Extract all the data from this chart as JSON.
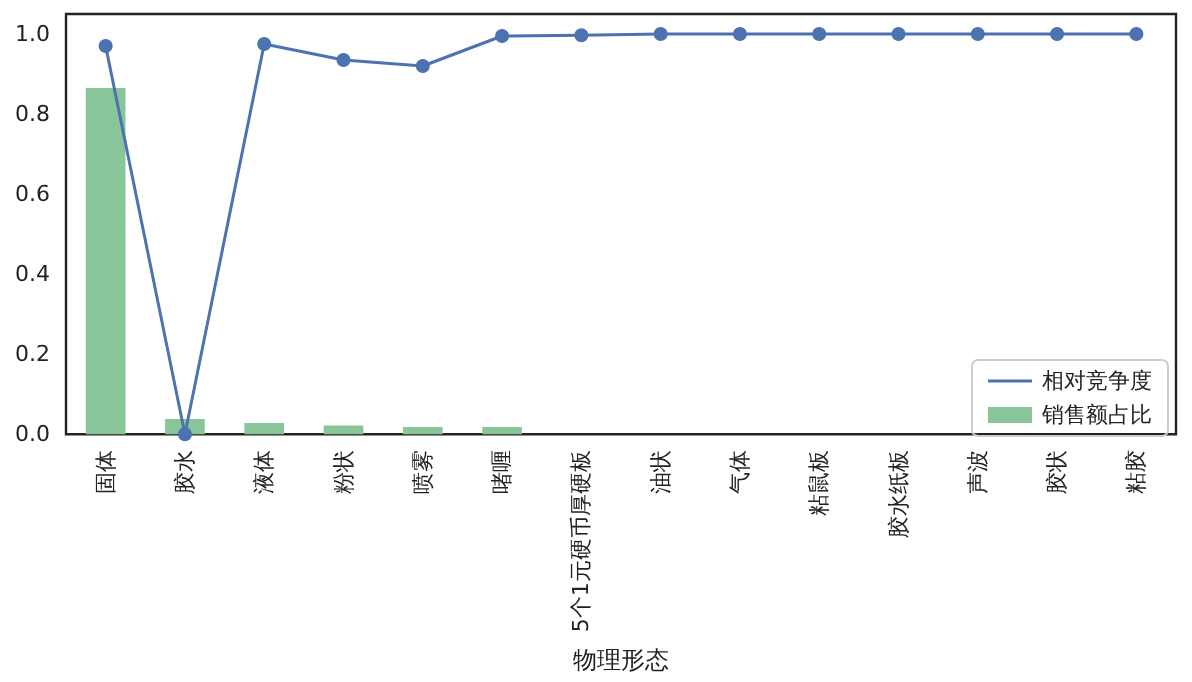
{
  "chart_data": {
    "type": "bar",
    "xlabel": "物理形态",
    "categories": [
      "固体",
      "胶水",
      "液体",
      "粉状",
      "喷雾",
      "啫喱",
      "5个1元硬币厚硬板",
      "油状",
      "气体",
      "粘鼠板",
      "胶水纸板",
      "声波",
      "胶状",
      "粘胶"
    ],
    "series": [
      {
        "name": "相对竞争度",
        "type": "line",
        "color": "#4c72b0",
        "values": [
          0.97,
          0.0,
          0.975,
          0.935,
          0.92,
          0.995,
          0.997,
          1.0,
          1.0,
          1.0,
          1.0,
          1.0,
          1.0,
          1.0
        ]
      },
      {
        "name": "销售额占比",
        "color": "#88c69a",
        "values": [
          0.865,
          0.038,
          0.028,
          0.022,
          0.018,
          0.018,
          0.0,
          0.0,
          0.0,
          0.0,
          0.0,
          0.0,
          0.0,
          0.0
        ]
      }
    ],
    "ylim": [
      0,
      1.05
    ],
    "yticks": [
      {
        "value": 0,
        "label": "0.0"
      },
      {
        "value": 0.2,
        "label": "0.2"
      },
      {
        "value": 0.4,
        "label": "0.4"
      },
      {
        "value": 0.6,
        "label": "0.6"
      },
      {
        "value": 0.8,
        "label": "0.8"
      },
      {
        "value": 1.0,
        "label": "1.0"
      }
    ],
    "grid": false,
    "legend": "bottom right",
    "marker": "circle",
    "line_style": "solid"
  }
}
